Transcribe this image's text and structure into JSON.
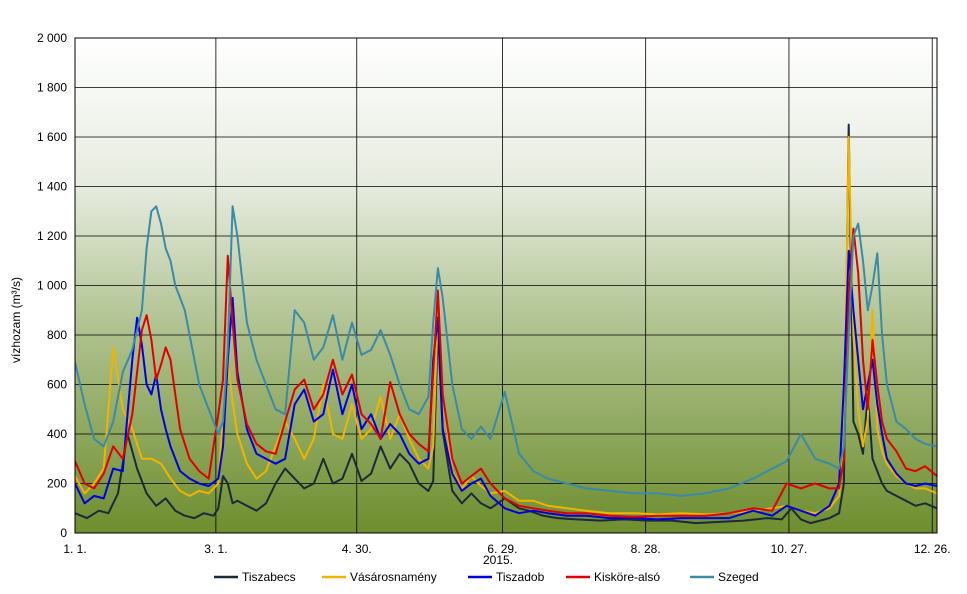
{
  "chart_data": {
    "type": "line",
    "ylabel_main": "vízhozam",
    "ylabel_unit": "(m³/s)",
    "ylim": [
      0,
      2000
    ],
    "yticks": [
      0,
      200,
      400,
      600,
      800,
      1000,
      1200,
      1400,
      1600,
      1800,
      2000
    ],
    "ytick_labels": [
      "0",
      "200",
      "400",
      "600",
      "800",
      "1 000",
      "1 200",
      "1 400",
      "1 600",
      "1 800",
      "2 000"
    ],
    "xlim": [
      0,
      361
    ],
    "xticks": [
      0,
      59,
      118,
      179,
      239,
      299,
      359
    ],
    "xtick_labels": [
      "1. 1.",
      "3. 1.",
      "4. 30.",
      "6. 29.",
      "8. 28.",
      "10. 27.",
      "12. 26."
    ],
    "year_label": "2015.",
    "grid": true,
    "legend_position": "bottom",
    "colors": {
      "background_top": "#ffffff",
      "background_bottom": "#6e8e2e",
      "grid": "#000000"
    },
    "series": [
      {
        "name": "Tiszabecs",
        "color": "#1a2a3a",
        "x": [
          0,
          5,
          10,
          14,
          18,
          22,
          26,
          30,
          34,
          38,
          42,
          46,
          50,
          54,
          58,
          60,
          62,
          64,
          66,
          68,
          72,
          76,
          80,
          84,
          88,
          92,
          96,
          100,
          104,
          108,
          112,
          116,
          120,
          124,
          128,
          132,
          136,
          140,
          144,
          148,
          150,
          152,
          154,
          158,
          162,
          166,
          170,
          174,
          180,
          186,
          190,
          196,
          202,
          210,
          220,
          230,
          240,
          250,
          260,
          270,
          280,
          290,
          296,
          300,
          304,
          308,
          312,
          316,
          320,
          322,
          324,
          326,
          328,
          330,
          332,
          334,
          336,
          338,
          340,
          344,
          348,
          352,
          356,
          361
        ],
        "y": [
          80,
          60,
          90,
          80,
          160,
          400,
          260,
          160,
          110,
          140,
          90,
          70,
          60,
          80,
          70,
          100,
          230,
          200,
          120,
          130,
          110,
          90,
          120,
          200,
          260,
          220,
          180,
          200,
          300,
          200,
          220,
          320,
          210,
          240,
          350,
          260,
          320,
          280,
          200,
          170,
          210,
          830,
          410,
          170,
          120,
          160,
          120,
          100,
          140,
          100,
          90,
          70,
          60,
          55,
          50,
          55,
          50,
          50,
          40,
          45,
          50,
          60,
          55,
          100,
          55,
          40,
          50,
          60,
          80,
          200,
          1650,
          450,
          400,
          320,
          560,
          300,
          250,
          200,
          170,
          150,
          130,
          110,
          120,
          100
        ]
      },
      {
        "name": "Vásárosnamény",
        "color": "#f0b400",
        "x": [
          0,
          4,
          8,
          12,
          16,
          20,
          24,
          28,
          32,
          36,
          40,
          44,
          48,
          52,
          56,
          60,
          62,
          64,
          66,
          68,
          72,
          76,
          80,
          84,
          88,
          92,
          96,
          100,
          104,
          108,
          112,
          116,
          120,
          124,
          128,
          132,
          136,
          140,
          144,
          148,
          150,
          152,
          154,
          158,
          162,
          166,
          170,
          174,
          180,
          186,
          192,
          198,
          206,
          214,
          224,
          234,
          244,
          254,
          264,
          274,
          284,
          292,
          298,
          304,
          310,
          316,
          320,
          322,
          324,
          326,
          328,
          330,
          332,
          334,
          336,
          338,
          340,
          344,
          348,
          352,
          356,
          361
        ],
        "y": [
          230,
          160,
          200,
          260,
          750,
          500,
          420,
          300,
          300,
          280,
          220,
          170,
          150,
          170,
          160,
          200,
          480,
          700,
          530,
          400,
          280,
          220,
          250,
          350,
          450,
          380,
          300,
          380,
          600,
          400,
          380,
          520,
          380,
          420,
          550,
          380,
          480,
          380,
          300,
          260,
          350,
          900,
          560,
          250,
          180,
          230,
          190,
          160,
          170,
          130,
          130,
          110,
          100,
          90,
          80,
          80,
          75,
          80,
          75,
          80,
          90,
          100,
          110,
          90,
          80,
          100,
          150,
          350,
          1600,
          800,
          500,
          350,
          460,
          900,
          420,
          330,
          280,
          230,
          200,
          180,
          180,
          160
        ]
      },
      {
        "name": "Tiszadob",
        "color": "#0000e0",
        "x": [
          0,
          4,
          8,
          12,
          16,
          20,
          22,
          24,
          26,
          28,
          30,
          32,
          34,
          36,
          38,
          40,
          44,
          48,
          52,
          56,
          60,
          62,
          64,
          66,
          68,
          72,
          76,
          80,
          84,
          88,
          92,
          96,
          100,
          104,
          108,
          112,
          116,
          120,
          124,
          128,
          132,
          136,
          140,
          144,
          148,
          150,
          152,
          154,
          158,
          162,
          166,
          170,
          174,
          180,
          186,
          192,
          198,
          206,
          214,
          224,
          234,
          244,
          254,
          264,
          274,
          284,
          292,
          298,
          304,
          310,
          316,
          320,
          322,
          324,
          326,
          328,
          330,
          332,
          334,
          336,
          338,
          340,
          344,
          348,
          352,
          356,
          361
        ],
        "y": [
          200,
          120,
          150,
          140,
          260,
          250,
          480,
          700,
          870,
          760,
          600,
          560,
          640,
          500,
          420,
          350,
          250,
          220,
          200,
          190,
          220,
          350,
          700,
          950,
          650,
          420,
          320,
          300,
          280,
          300,
          520,
          580,
          450,
          480,
          660,
          480,
          600,
          420,
          480,
          380,
          440,
          400,
          320,
          280,
          300,
          700,
          870,
          420,
          240,
          170,
          200,
          220,
          150,
          100,
          80,
          90,
          80,
          70,
          70,
          60,
          60,
          55,
          60,
          60,
          60,
          90,
          70,
          110,
          90,
          70,
          110,
          200,
          600,
          1140,
          900,
          700,
          500,
          600,
          700,
          520,
          400,
          300,
          240,
          200,
          190,
          200,
          190
        ]
      },
      {
        "name": "Kisköre-alsó",
        "color": "#e00000",
        "x": [
          0,
          4,
          8,
          12,
          16,
          20,
          24,
          28,
          30,
          32,
          34,
          36,
          38,
          40,
          42,
          44,
          46,
          48,
          52,
          56,
          60,
          62,
          64,
          66,
          68,
          72,
          76,
          80,
          84,
          88,
          92,
          96,
          100,
          104,
          108,
          112,
          116,
          120,
          124,
          128,
          132,
          136,
          140,
          144,
          148,
          150,
          152,
          154,
          158,
          162,
          166,
          170,
          174,
          180,
          186,
          192,
          198,
          206,
          214,
          224,
          234,
          244,
          254,
          264,
          274,
          284,
          292,
          298,
          304,
          310,
          316,
          320,
          322,
          324,
          326,
          328,
          330,
          332,
          334,
          336,
          338,
          340,
          344,
          348,
          352,
          356,
          361
        ],
        "y": [
          290,
          200,
          180,
          240,
          350,
          300,
          480,
          820,
          880,
          780,
          620,
          680,
          750,
          700,
          560,
          420,
          360,
          300,
          250,
          220,
          480,
          620,
          1120,
          850,
          620,
          440,
          360,
          330,
          320,
          450,
          580,
          620,
          500,
          560,
          700,
          560,
          640,
          480,
          440,
          380,
          610,
          480,
          400,
          360,
          330,
          650,
          980,
          560,
          300,
          200,
          230,
          260,
          200,
          140,
          110,
          100,
          90,
          80,
          80,
          70,
          65,
          70,
          70,
          70,
          80,
          100,
          90,
          200,
          180,
          200,
          180,
          180,
          300,
          960,
          1230,
          1050,
          700,
          500,
          780,
          600,
          450,
          380,
          330,
          260,
          250,
          270,
          230
        ]
      },
      {
        "name": "Szeged",
        "color": "#3a8aa8",
        "x": [
          0,
          4,
          8,
          12,
          16,
          20,
          24,
          28,
          30,
          32,
          34,
          36,
          38,
          40,
          42,
          44,
          46,
          48,
          52,
          56,
          60,
          62,
          64,
          66,
          68,
          72,
          76,
          80,
          84,
          88,
          92,
          96,
          100,
          104,
          108,
          112,
          116,
          120,
          124,
          128,
          132,
          136,
          140,
          144,
          148,
          150,
          152,
          154,
          158,
          162,
          166,
          170,
          174,
          180,
          186,
          192,
          198,
          206,
          214,
          224,
          234,
          244,
          254,
          264,
          274,
          284,
          292,
          298,
          304,
          310,
          316,
          320,
          322,
          324,
          326,
          328,
          330,
          332,
          334,
          336,
          338,
          340,
          344,
          348,
          352,
          356,
          361
        ],
        "y": [
          690,
          520,
          380,
          350,
          450,
          650,
          740,
          900,
          1150,
          1300,
          1320,
          1250,
          1150,
          1100,
          1000,
          950,
          900,
          800,
          600,
          500,
          400,
          450,
          750,
          1320,
          1200,
          850,
          700,
          600,
          500,
          480,
          900,
          850,
          700,
          750,
          880,
          700,
          850,
          720,
          740,
          820,
          720,
          600,
          500,
          480,
          550,
          850,
          1070,
          950,
          600,
          420,
          380,
          430,
          380,
          570,
          320,
          250,
          220,
          200,
          180,
          170,
          160,
          160,
          150,
          160,
          180,
          220,
          260,
          290,
          400,
          300,
          280,
          260,
          350,
          800,
          1200,
          1250,
          1100,
          900,
          1000,
          1130,
          800,
          600,
          450,
          420,
          380,
          360,
          350
        ]
      }
    ]
  }
}
